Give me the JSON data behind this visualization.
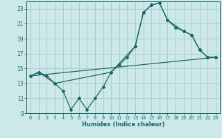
{
  "background_color": "#cce8e8",
  "grid_color": "#aacccc",
  "line_color": "#1a6666",
  "xlabel": "Humidex (Indice chaleur)",
  "xlim": [
    -0.5,
    23.5
  ],
  "ylim": [
    9,
    24
  ],
  "yticks": [
    9,
    11,
    13,
    15,
    17,
    19,
    21,
    23
  ],
  "xticks": [
    0,
    1,
    2,
    3,
    4,
    5,
    6,
    7,
    8,
    9,
    10,
    11,
    12,
    13,
    14,
    15,
    16,
    17,
    18,
    19,
    20,
    21,
    22,
    23
  ],
  "line1_x": [
    0,
    1,
    2,
    3,
    4,
    5,
    6,
    7,
    8,
    9,
    10,
    11,
    12,
    13,
    14,
    15,
    16,
    17,
    18,
    19,
    20,
    21,
    22,
    23
  ],
  "line1_y": [
    14.0,
    14.5,
    14.0,
    13.0,
    12.0,
    9.5,
    11.0,
    9.5,
    11.0,
    12.5,
    14.5,
    15.5,
    16.5,
    18.0,
    22.5,
    23.5,
    23.8,
    21.5,
    20.5,
    20.0,
    19.5,
    17.5,
    16.5,
    16.5
  ],
  "line2_x": [
    0,
    1,
    3,
    10,
    13,
    14,
    15,
    16,
    17,
    19,
    20,
    21,
    22,
    23
  ],
  "line2_y": [
    14.0,
    14.5,
    13.0,
    14.5,
    18.0,
    22.5,
    23.5,
    23.8,
    21.5,
    20.0,
    19.5,
    17.5,
    16.5,
    16.5
  ],
  "line3_x": [
    0,
    23
  ],
  "line3_y": [
    14.0,
    16.5
  ]
}
